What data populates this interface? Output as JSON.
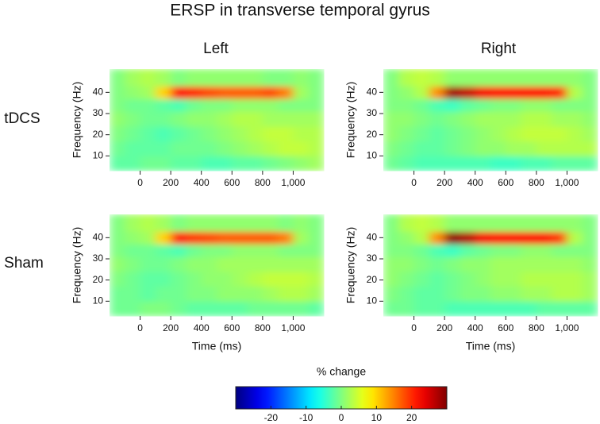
{
  "title": "ERSP in transverse temporal gyrus",
  "column_titles": [
    "Left",
    "Right"
  ],
  "row_titles": [
    "tDCS",
    "Sham"
  ],
  "colorbar": {
    "label": "% change",
    "colormap": "jet",
    "lim": [
      -30,
      30
    ],
    "ticks": [
      -20,
      -10,
      0,
      10,
      20
    ]
  },
  "chart_data": [
    {
      "type": "heatmap",
      "ylabel": "Frequency (Hz)",
      "x_bins": [
        -200,
        -100,
        0,
        100,
        200,
        300,
        400,
        500,
        600,
        700,
        800,
        900,
        1000,
        1100,
        1200
      ],
      "y_bins": [
        3,
        10,
        17,
        24,
        31,
        37,
        43,
        51
      ],
      "values": [
        [
          -2,
          -2,
          -1,
          -1,
          -2,
          -2,
          -3,
          -3,
          -2,
          -2,
          -1,
          0,
          1,
          2
        ],
        [
          -1,
          -2,
          -2,
          -2,
          -1,
          -1,
          -1,
          0,
          1,
          2,
          3,
          4,
          4,
          3
        ],
        [
          0,
          -1,
          -2,
          -3,
          -2,
          -1,
          0,
          1,
          2,
          3,
          4,
          4,
          3,
          3
        ],
        [
          1,
          0,
          -1,
          -1,
          0,
          1,
          1,
          2,
          3,
          3,
          2,
          2,
          2,
          2
        ],
        [
          0,
          -1,
          -1,
          -2,
          -3,
          -1,
          0,
          0,
          1,
          1,
          1,
          0,
          0,
          0
        ],
        [
          0,
          1,
          2,
          10,
          22,
          20,
          18,
          17,
          17,
          17,
          18,
          15,
          2,
          0
        ],
        [
          0,
          2,
          3,
          2,
          0,
          1,
          1,
          1,
          1,
          1,
          0,
          0,
          1,
          0
        ]
      ],
      "xlim": [
        -200,
        1200
      ],
      "ylim": [
        3,
        51
      ],
      "xticks": [
        0,
        200,
        400,
        600,
        800,
        {
          "value": 1000,
          "label": "1,000"
        }
      ],
      "yticks": [
        10,
        20,
        30,
        40
      ]
    },
    {
      "type": "heatmap",
      "ylabel": "Frequency (Hz)",
      "x_bins": [
        -200,
        -100,
        0,
        100,
        200,
        300,
        400,
        500,
        600,
        700,
        800,
        900,
        1000,
        1100,
        1200
      ],
      "y_bins": [
        3,
        10,
        17,
        24,
        31,
        37,
        43,
        51
      ],
      "values": [
        [
          -1,
          -2,
          -3,
          -3,
          -3,
          -3,
          -3,
          -4,
          -4,
          -3,
          -3,
          -2,
          -2,
          -2
        ],
        [
          0,
          -1,
          -2,
          -2,
          -1,
          0,
          1,
          1,
          2,
          2,
          3,
          3,
          3,
          3
        ],
        [
          1,
          0,
          -1,
          -2,
          -1,
          0,
          1,
          2,
          3,
          4,
          4,
          4,
          3,
          2
        ],
        [
          1,
          1,
          0,
          -1,
          0,
          1,
          2,
          2,
          2,
          3,
          3,
          2,
          2,
          1
        ],
        [
          0,
          0,
          -1,
          -3,
          -4,
          -2,
          -1,
          0,
          0,
          1,
          1,
          0,
          0,
          0
        ],
        [
          0,
          1,
          3,
          14,
          28,
          26,
          23,
          22,
          22,
          22,
          22,
          20,
          3,
          0
        ],
        [
          0,
          3,
          4,
          3,
          1,
          1,
          1,
          1,
          1,
          1,
          1,
          1,
          1,
          0
        ]
      ],
      "xlim": [
        -200,
        1200
      ],
      "ylim": [
        3,
        51
      ],
      "xticks": [
        0,
        200,
        400,
        600,
        800,
        {
          "value": 1000,
          "label": "1,000"
        }
      ],
      "yticks": [
        10,
        20,
        30,
        40
      ]
    },
    {
      "type": "heatmap",
      "ylabel": "Frequency (Hz)",
      "xlabel": "Time (ms)",
      "x_bins": [
        -200,
        -100,
        0,
        100,
        200,
        300,
        400,
        500,
        600,
        700,
        800,
        900,
        1000,
        1100,
        1200
      ],
      "y_bins": [
        3,
        10,
        17,
        24,
        31,
        37,
        43,
        51
      ],
      "values": [
        [
          -1,
          -1,
          0,
          0,
          -1,
          -2,
          -2,
          -2,
          -2,
          -1,
          -1,
          -1,
          -1,
          -2
        ],
        [
          -1,
          -1,
          -2,
          -1,
          -1,
          0,
          0,
          1,
          1,
          1,
          2,
          3,
          3,
          2
        ],
        [
          0,
          -1,
          -2,
          -2,
          -1,
          0,
          1,
          1,
          2,
          3,
          4,
          4,
          4,
          3
        ],
        [
          1,
          0,
          -1,
          -1,
          0,
          1,
          1,
          2,
          2,
          2,
          2,
          2,
          2,
          2
        ],
        [
          0,
          -1,
          -1,
          -2,
          -3,
          -1,
          0,
          0,
          1,
          1,
          1,
          0,
          0,
          0
        ],
        [
          0,
          1,
          2,
          10,
          21,
          19,
          18,
          17,
          17,
          17,
          17,
          15,
          2,
          0
        ],
        [
          0,
          2,
          3,
          2,
          0,
          1,
          1,
          1,
          1,
          1,
          1,
          0,
          1,
          0
        ]
      ],
      "xlim": [
        -200,
        1200
      ],
      "ylim": [
        3,
        51
      ],
      "xticks": [
        0,
        200,
        400,
        600,
        800,
        {
          "value": 1000,
          "label": "1,000"
        }
      ],
      "yticks": [
        10,
        20,
        30,
        40
      ]
    },
    {
      "type": "heatmap",
      "ylabel": "Frequency (Hz)",
      "xlabel": "Time (ms)",
      "x_bins": [
        -200,
        -100,
        0,
        100,
        200,
        300,
        400,
        500,
        600,
        700,
        800,
        900,
        1000,
        1100,
        1200
      ],
      "y_bins": [
        3,
        10,
        17,
        24,
        31,
        37,
        43,
        51
      ],
      "values": [
        [
          -1,
          -1,
          -2,
          -2,
          -3,
          -3,
          -3,
          -3,
          -3,
          -3,
          -2,
          -2,
          -2,
          -2
        ],
        [
          0,
          -1,
          -2,
          -2,
          -1,
          0,
          0,
          1,
          1,
          2,
          2,
          3,
          3,
          2
        ],
        [
          1,
          0,
          -1,
          -2,
          -1,
          0,
          1,
          2,
          2,
          3,
          3,
          3,
          3,
          2
        ],
        [
          1,
          1,
          0,
          -1,
          0,
          1,
          1,
          2,
          2,
          2,
          2,
          2,
          2,
          1
        ],
        [
          0,
          0,
          -1,
          -3,
          -4,
          -2,
          -1,
          0,
          0,
          1,
          1,
          0,
          0,
          0
        ],
        [
          0,
          1,
          3,
          14,
          29,
          27,
          23,
          22,
          22,
          22,
          22,
          19,
          3,
          0
        ],
        [
          0,
          3,
          4,
          3,
          1,
          1,
          1,
          1,
          1,
          1,
          1,
          1,
          1,
          0
        ]
      ],
      "xlim": [
        -200,
        1200
      ],
      "ylim": [
        3,
        51
      ],
      "xticks": [
        0,
        200,
        400,
        600,
        800,
        {
          "value": 1000,
          "label": "1,000"
        }
      ],
      "yticks": [
        10,
        20,
        30,
        40
      ]
    }
  ]
}
